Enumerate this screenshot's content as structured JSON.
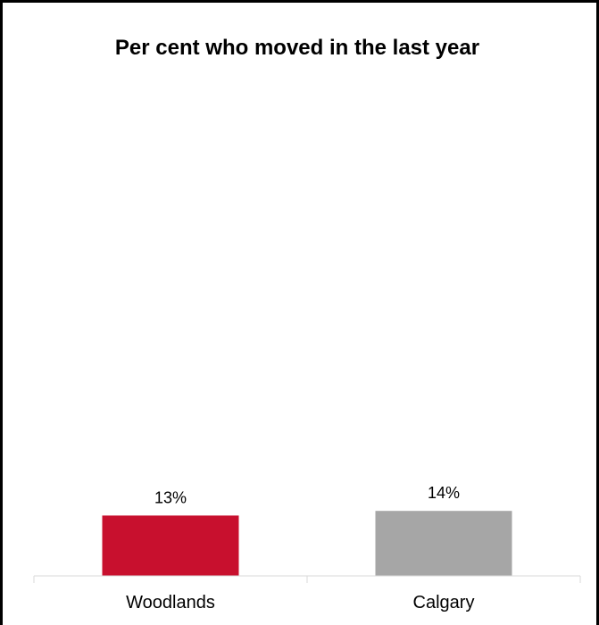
{
  "chart_data": {
    "type": "bar",
    "title": "Per cent who moved in the last year",
    "categories": [
      "Woodlands",
      "Calgary"
    ],
    "values": [
      13,
      14
    ],
    "value_labels": [
      "13%",
      "14%"
    ],
    "colors": [
      "#c8102e",
      "#a6a6a6"
    ],
    "ylim": [
      0,
      100
    ],
    "grid": false,
    "xlabel": "",
    "ylabel": ""
  }
}
